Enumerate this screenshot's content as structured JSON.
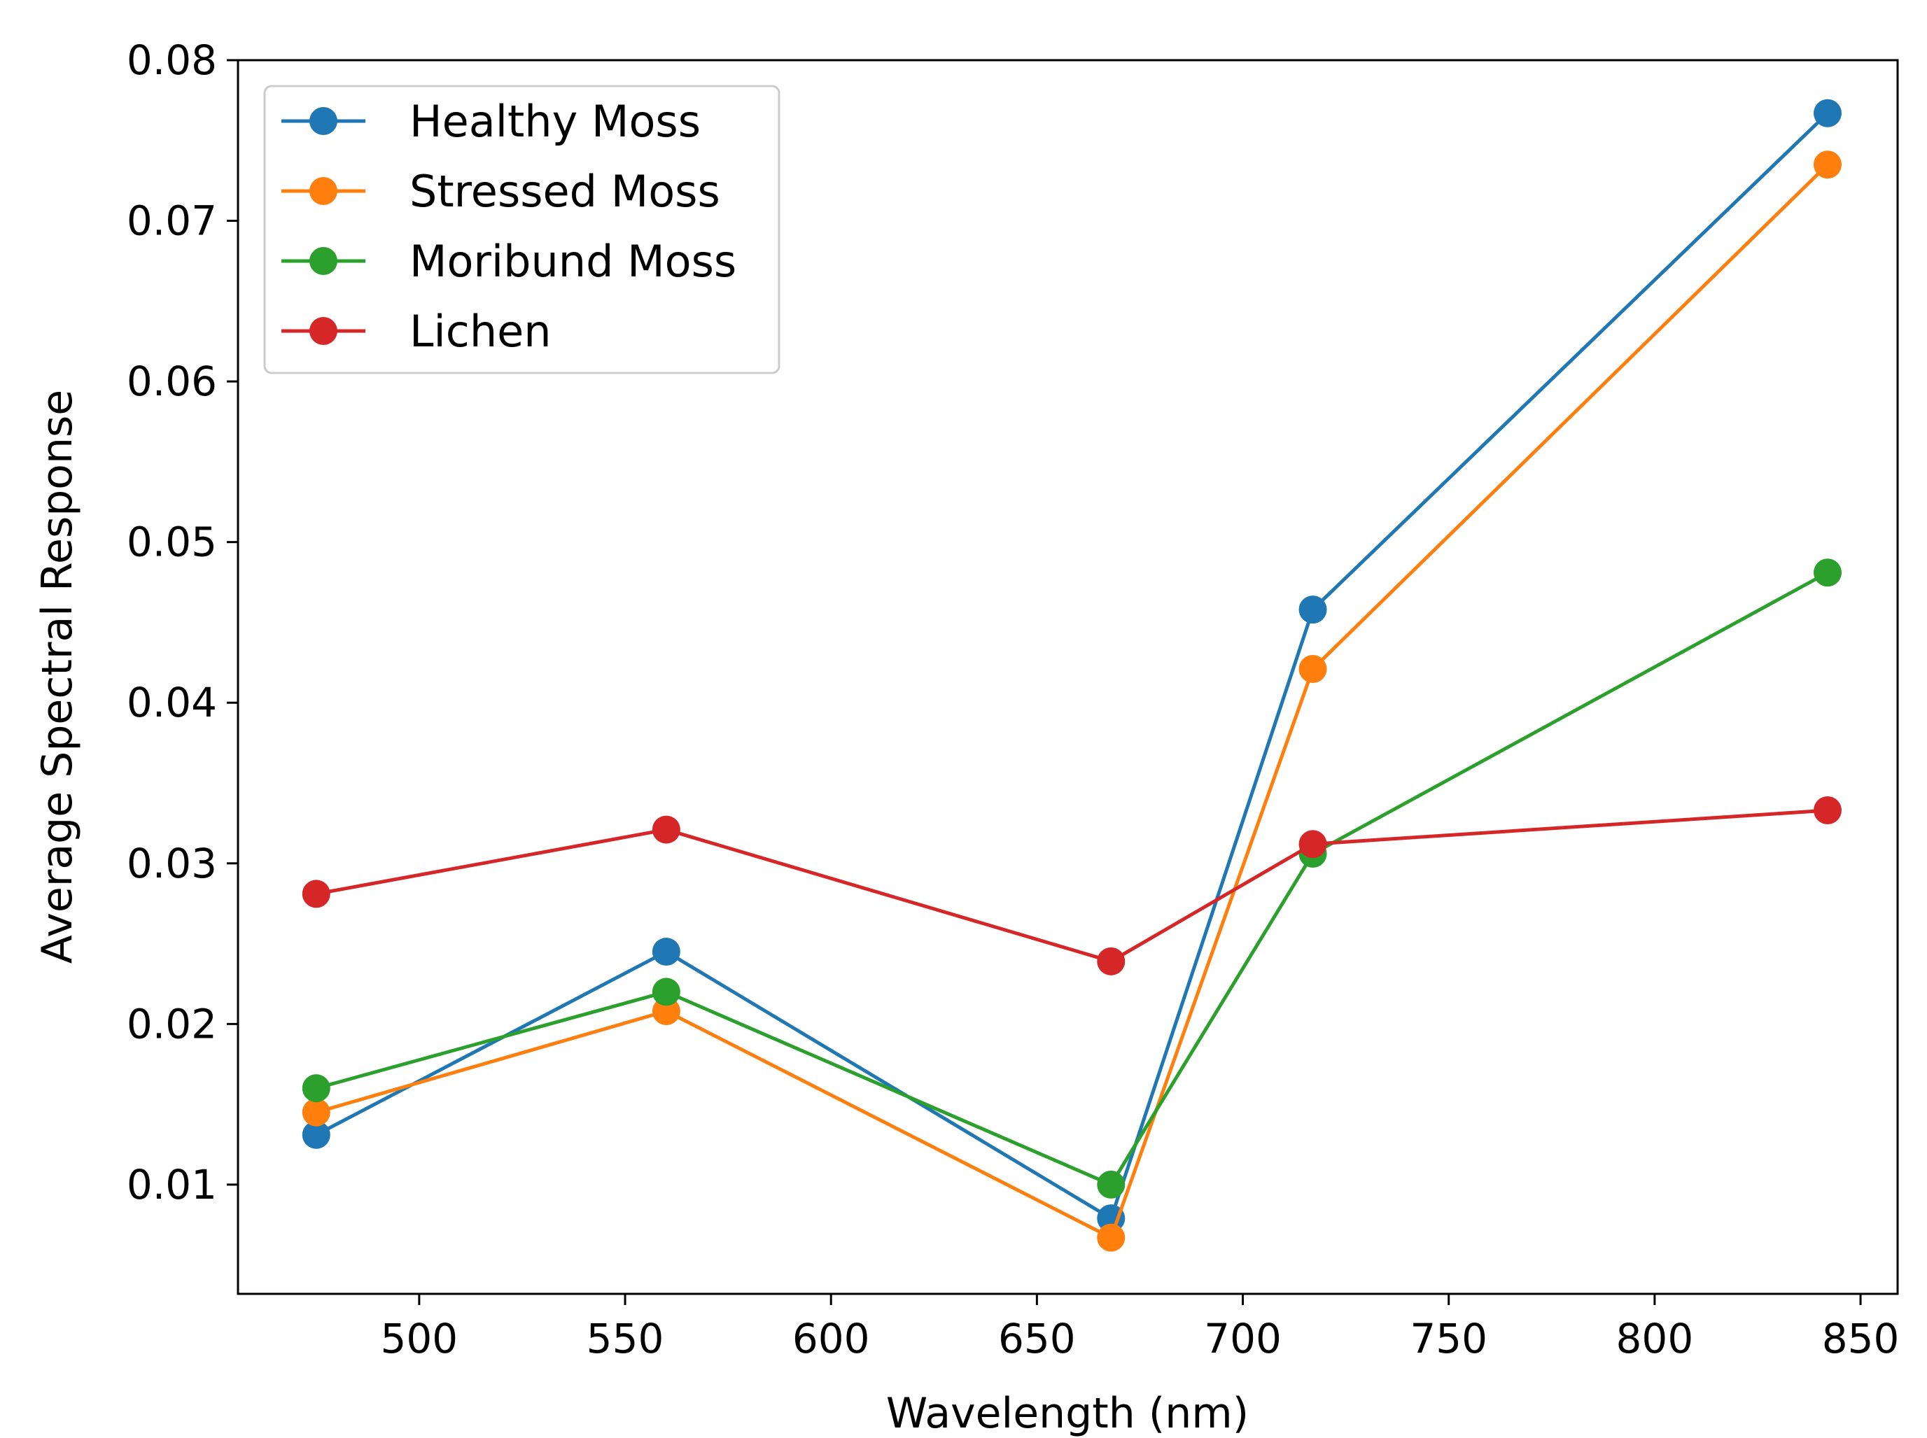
{
  "chart_data": {
    "type": "line",
    "title": "",
    "xlabel": "Wavelength (nm)",
    "ylabel": "Average Spectral Response",
    "xlim": [
      456,
      859
    ],
    "ylim": [
      0.0032,
      0.08
    ],
    "xticks": [
      500,
      550,
      600,
      650,
      700,
      750,
      800,
      850
    ],
    "yticks": [
      0.01,
      0.02,
      0.03,
      0.04,
      0.05,
      0.06,
      0.07,
      0.08
    ],
    "xtick_labels": [
      "500",
      "550",
      "600",
      "650",
      "700",
      "750",
      "800",
      "850"
    ],
    "ytick_labels": [
      "0.01",
      "0.02",
      "0.03",
      "0.04",
      "0.05",
      "0.06",
      "0.07",
      "0.08"
    ],
    "grid": false,
    "legend_position": "top-left",
    "x": [
      475,
      560,
      668,
      717,
      842
    ],
    "series": [
      {
        "name": "Healthy Moss",
        "color": "#1f77b4",
        "values": [
          0.0131,
          0.0245,
          0.0079,
          0.0458,
          0.0767
        ]
      },
      {
        "name": "Stressed Moss",
        "color": "#ff7f0e",
        "values": [
          0.0145,
          0.0208,
          0.0067,
          0.0421,
          0.0735
        ]
      },
      {
        "name": "Moribund Moss",
        "color": "#2ca02c",
        "values": [
          0.016,
          0.022,
          0.01,
          0.0306,
          0.0481
        ]
      },
      {
        "name": "Lichen",
        "color": "#d62728",
        "values": [
          0.0281,
          0.0321,
          0.0239,
          0.0312,
          0.0333
        ]
      }
    ]
  }
}
